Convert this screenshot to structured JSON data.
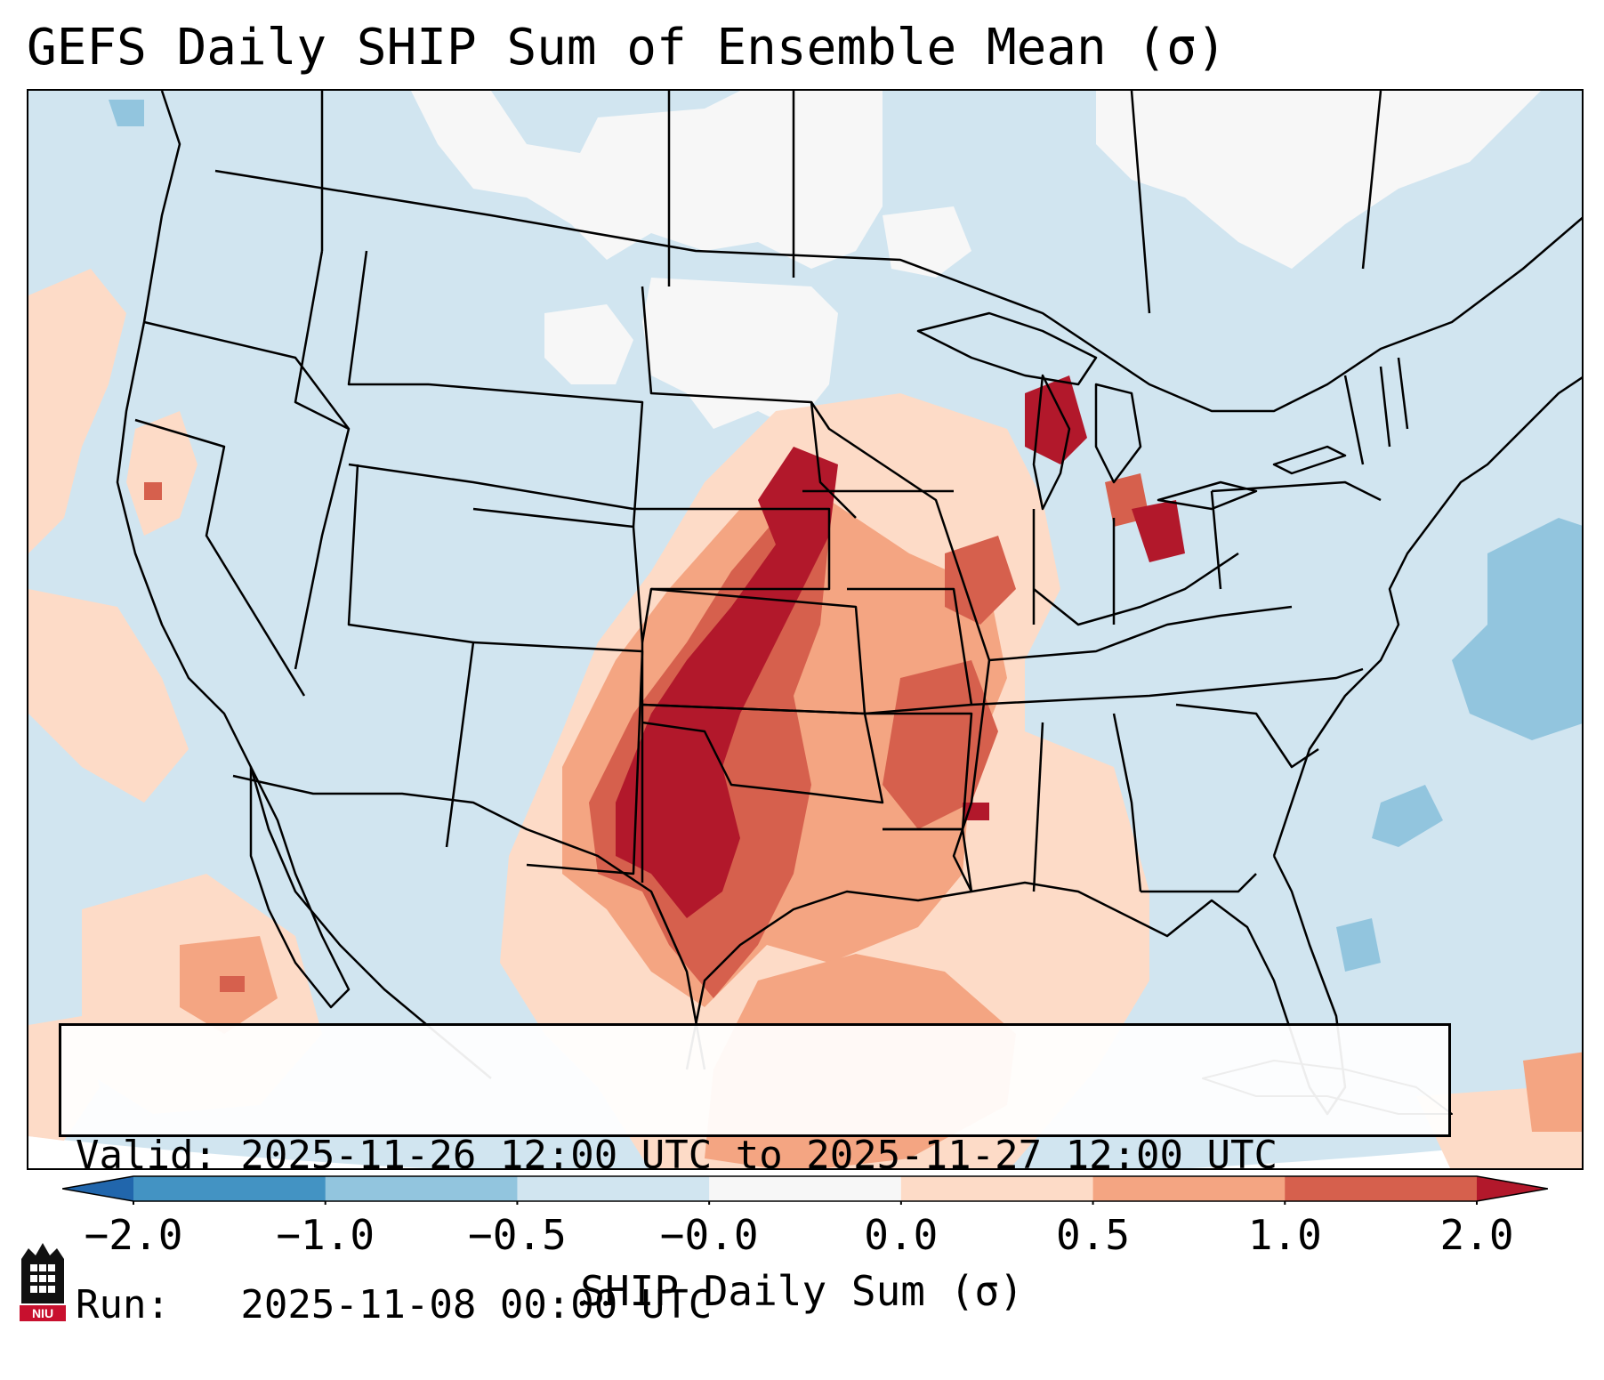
{
  "title": "GEFS Daily SHIP Sum of Ensemble Mean (σ)",
  "info": {
    "valid_line": "Valid: 2025-11-26 12:00 UTC to 2025-11-27 12:00 UTC",
    "run_line": "Run:   2025-11-08 00:00 UTC"
  },
  "colorbar": {
    "label": "SHIP Daily Sum (σ)",
    "ticks": [
      "−2.0",
      "−1.0",
      "−0.5",
      "−0.0",
      "0.0",
      "0.5",
      "1.0",
      "2.0"
    ],
    "colors": [
      "#4393c3",
      "#92c5de",
      "#d1e5f0",
      "#f7f7f7",
      "#fddbc7",
      "#f4a582",
      "#d6604d"
    ],
    "under_color": "#2166ac",
    "over_color": "#b2182b"
  },
  "map": {
    "region": "CONUS",
    "background_class": "-0.5 to -0.0",
    "background_color": "#d1e5f0",
    "outline_color": "#000000"
  },
  "logo": {
    "text": "NIU",
    "color": "#c8102e"
  }
}
